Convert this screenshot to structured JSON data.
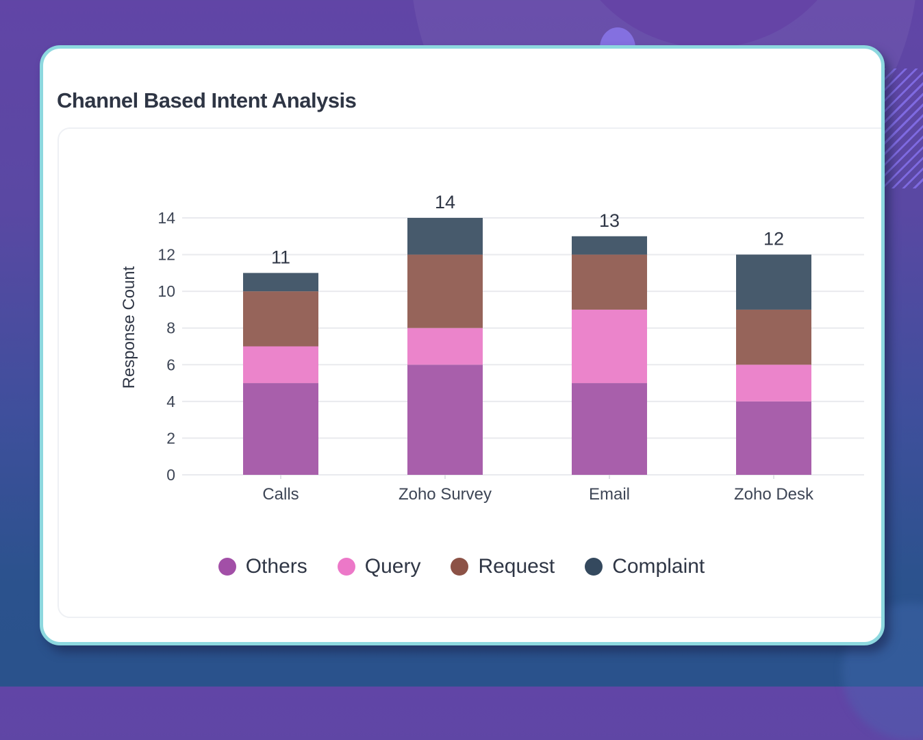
{
  "title": "Channel Based Intent Analysis",
  "chart_data": {
    "type": "bar",
    "stacked": true,
    "title": "Channel Based Intent Analysis",
    "xlabel": "",
    "ylabel": "Response Count",
    "ylim": [
      0,
      14
    ],
    "yticks": [
      0,
      2,
      4,
      6,
      8,
      10,
      12,
      14
    ],
    "grid": true,
    "legend_position": "bottom",
    "categories": [
      "Calls",
      "Zoho Survey",
      "Email",
      "Zoho Desk"
    ],
    "series": [
      {
        "name": "Others",
        "color": "#a85fab",
        "values": [
          5,
          6,
          5,
          4
        ]
      },
      {
        "name": "Query",
        "color": "#eb84cb",
        "values": [
          2,
          2,
          4,
          2
        ]
      },
      {
        "name": "Request",
        "color": "#96645a",
        "values": [
          3,
          4,
          3,
          3
        ]
      },
      {
        "name": "Complaint",
        "color": "#475a6c",
        "values": [
          1,
          2,
          1,
          3
        ]
      }
    ],
    "totals": [
      11,
      14,
      13,
      12
    ]
  },
  "legend": {
    "items": [
      {
        "label": "Others",
        "color": "#a24fa7"
      },
      {
        "label": "Query",
        "color": "#ec78c8"
      },
      {
        "label": "Request",
        "color": "#8c5246"
      },
      {
        "label": "Complaint",
        "color": "#34495e"
      }
    ]
  }
}
